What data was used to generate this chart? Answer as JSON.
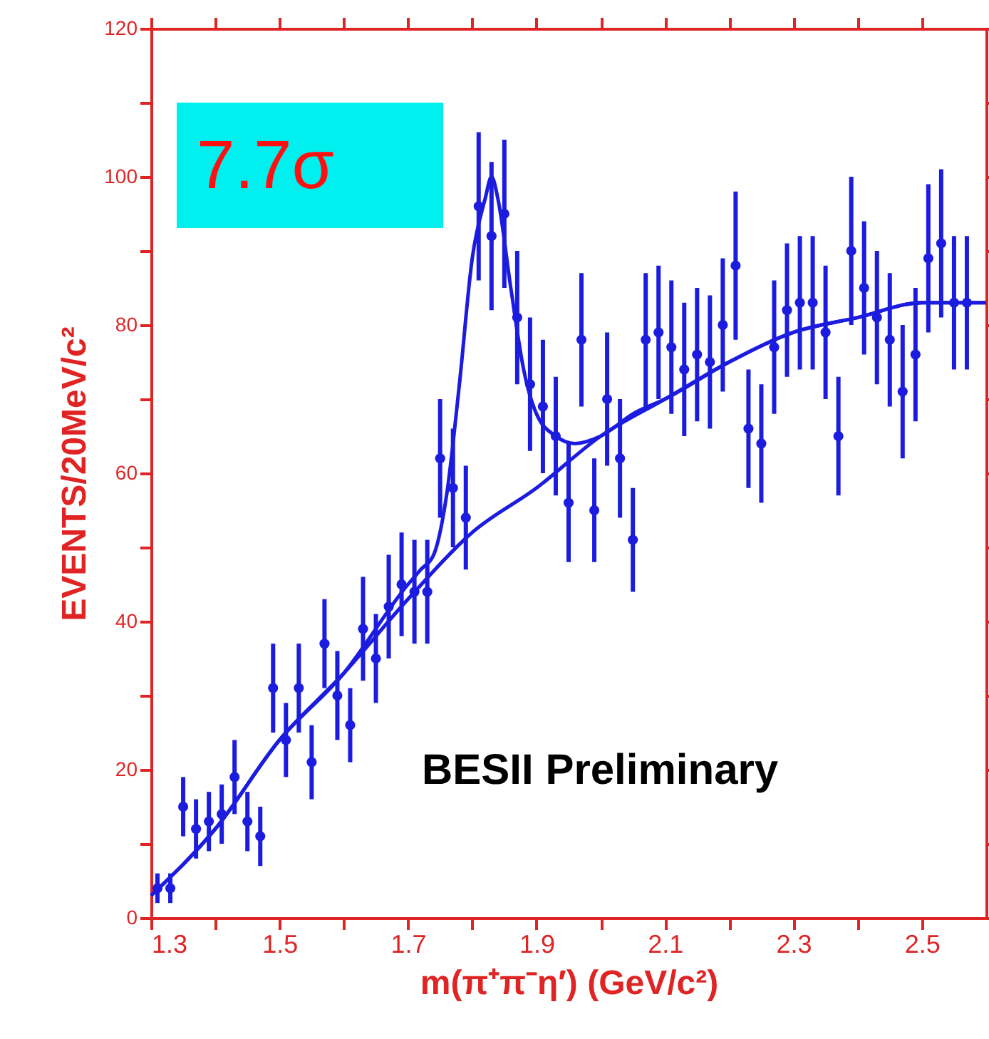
{
  "chart_data": {
    "type": "scatter",
    "xlabel": "m(π⁺π⁻η′)  (GeV/c²)",
    "ylabel": "EVENTS/20MeV/c²",
    "annotations": [
      "7.7σ",
      "BESII Preliminary"
    ],
    "xlim": [
      1.3,
      2.6
    ],
    "xticks": [
      1.3,
      {
        "value": 1.4,
        "label": null
      },
      1.5,
      {
        "value": 1.6,
        "label": null
      },
      1.7,
      {
        "value": 1.8,
        "label": null
      },
      1.9,
      {
        "value": 2.0,
        "label": null
      },
      2.1,
      {
        "value": 2.2,
        "label": null
      },
      2.3,
      {
        "value": 2.4,
        "label": null
      },
      2.5
    ],
    "ylim": [
      0,
      120
    ],
    "yticks": [
      0,
      {
        "value": 10,
        "label": null
      },
      20,
      {
        "value": 30,
        "label": null
      },
      40,
      {
        "value": 50,
        "label": null
      },
      60,
      {
        "value": 70,
        "label": null
      },
      80,
      {
        "value": 90,
        "label": null
      },
      100,
      {
        "value": 110,
        "label": null
      },
      120
    ],
    "grid": false,
    "series": [
      {
        "color": "#1c1ce0",
        "marker": "circle",
        "x": [
          1.31,
          1.33,
          1.35,
          1.37,
          1.39,
          1.41,
          1.43,
          1.45,
          1.47,
          1.49,
          1.51,
          1.53,
          1.55,
          1.57,
          1.59,
          1.61,
          1.63,
          1.65,
          1.67,
          1.69,
          1.71,
          1.73,
          1.75,
          1.77,
          1.79,
          1.81,
          1.83,
          1.85,
          1.87,
          1.89,
          1.91,
          1.93,
          1.95,
          1.97,
          1.99,
          2.01,
          2.03,
          2.05,
          2.07,
          2.09,
          2.11,
          2.13,
          2.15,
          2.17,
          2.19,
          2.21,
          2.23,
          2.25,
          2.27,
          2.29,
          2.31,
          2.33,
          2.35,
          2.37,
          2.39,
          2.41,
          2.43,
          2.45,
          2.47,
          2.49,
          2.51,
          2.53,
          2.55,
          2.57
        ],
        "values": [
          4,
          4,
          15,
          12,
          13,
          14,
          19,
          13,
          11,
          31,
          24,
          31,
          21,
          37,
          30,
          26,
          39,
          35,
          42,
          45,
          44,
          44,
          62,
          58,
          54,
          96,
          92,
          95,
          81,
          72,
          69,
          65,
          56,
          78,
          55,
          70,
          62,
          51,
          78,
          79,
          77,
          74,
          76,
          75,
          80,
          88,
          66,
          64,
          77,
          82,
          83,
          83,
          79,
          65,
          90,
          85,
          81,
          78,
          71,
          76,
          89,
          91,
          83,
          83
        ],
        "errors": [
          2,
          2,
          4,
          4,
          4,
          4,
          5,
          4,
          4,
          6,
          5,
          6,
          5,
          6,
          6,
          5,
          7,
          6,
          7,
          7,
          7,
          7,
          8,
          8,
          7,
          10,
          10,
          10,
          9,
          9,
          9,
          8,
          8,
          9,
          7,
          9,
          8,
          7,
          9,
          9,
          9,
          9,
          9,
          9,
          9,
          10,
          8,
          8,
          9,
          9,
          9,
          9,
          9,
          8,
          10,
          9,
          9,
          9,
          9,
          9,
          10,
          10,
          9,
          9
        ]
      },
      {
        "type": "line",
        "color": "#1c1ce0",
        "marker": "none",
        "line_style": "solid",
        "x": [
          1.3,
          1.4,
          1.5,
          1.6,
          1.7,
          1.72,
          1.74,
          1.76,
          1.78,
          1.8,
          1.82,
          1.83,
          1.84,
          1.86,
          1.88,
          1.9,
          1.93,
          1.96,
          2.0,
          2.05,
          2.1,
          2.2,
          2.3,
          2.4,
          2.5,
          2.6
        ],
        "values": [
          3,
          12,
          24,
          33,
          45,
          47,
          49,
          57,
          72,
          89,
          97,
          100,
          97,
          85,
          74,
          68,
          65,
          64,
          65,
          68,
          70,
          75,
          79,
          81,
          83,
          83
        ]
      },
      {
        "type": "line",
        "color": "#1c1ce0",
        "marker": "none",
        "line_style": "solid",
        "x": [
          1.3,
          1.4,
          1.5,
          1.6,
          1.7,
          1.8,
          1.9,
          2.0,
          2.1,
          2.2,
          2.3,
          2.4,
          2.5,
          2.6
        ],
        "values": [
          3,
          12,
          24,
          33,
          43,
          52,
          58,
          65,
          70,
          75,
          79,
          81,
          83,
          83
        ]
      }
    ]
  }
}
